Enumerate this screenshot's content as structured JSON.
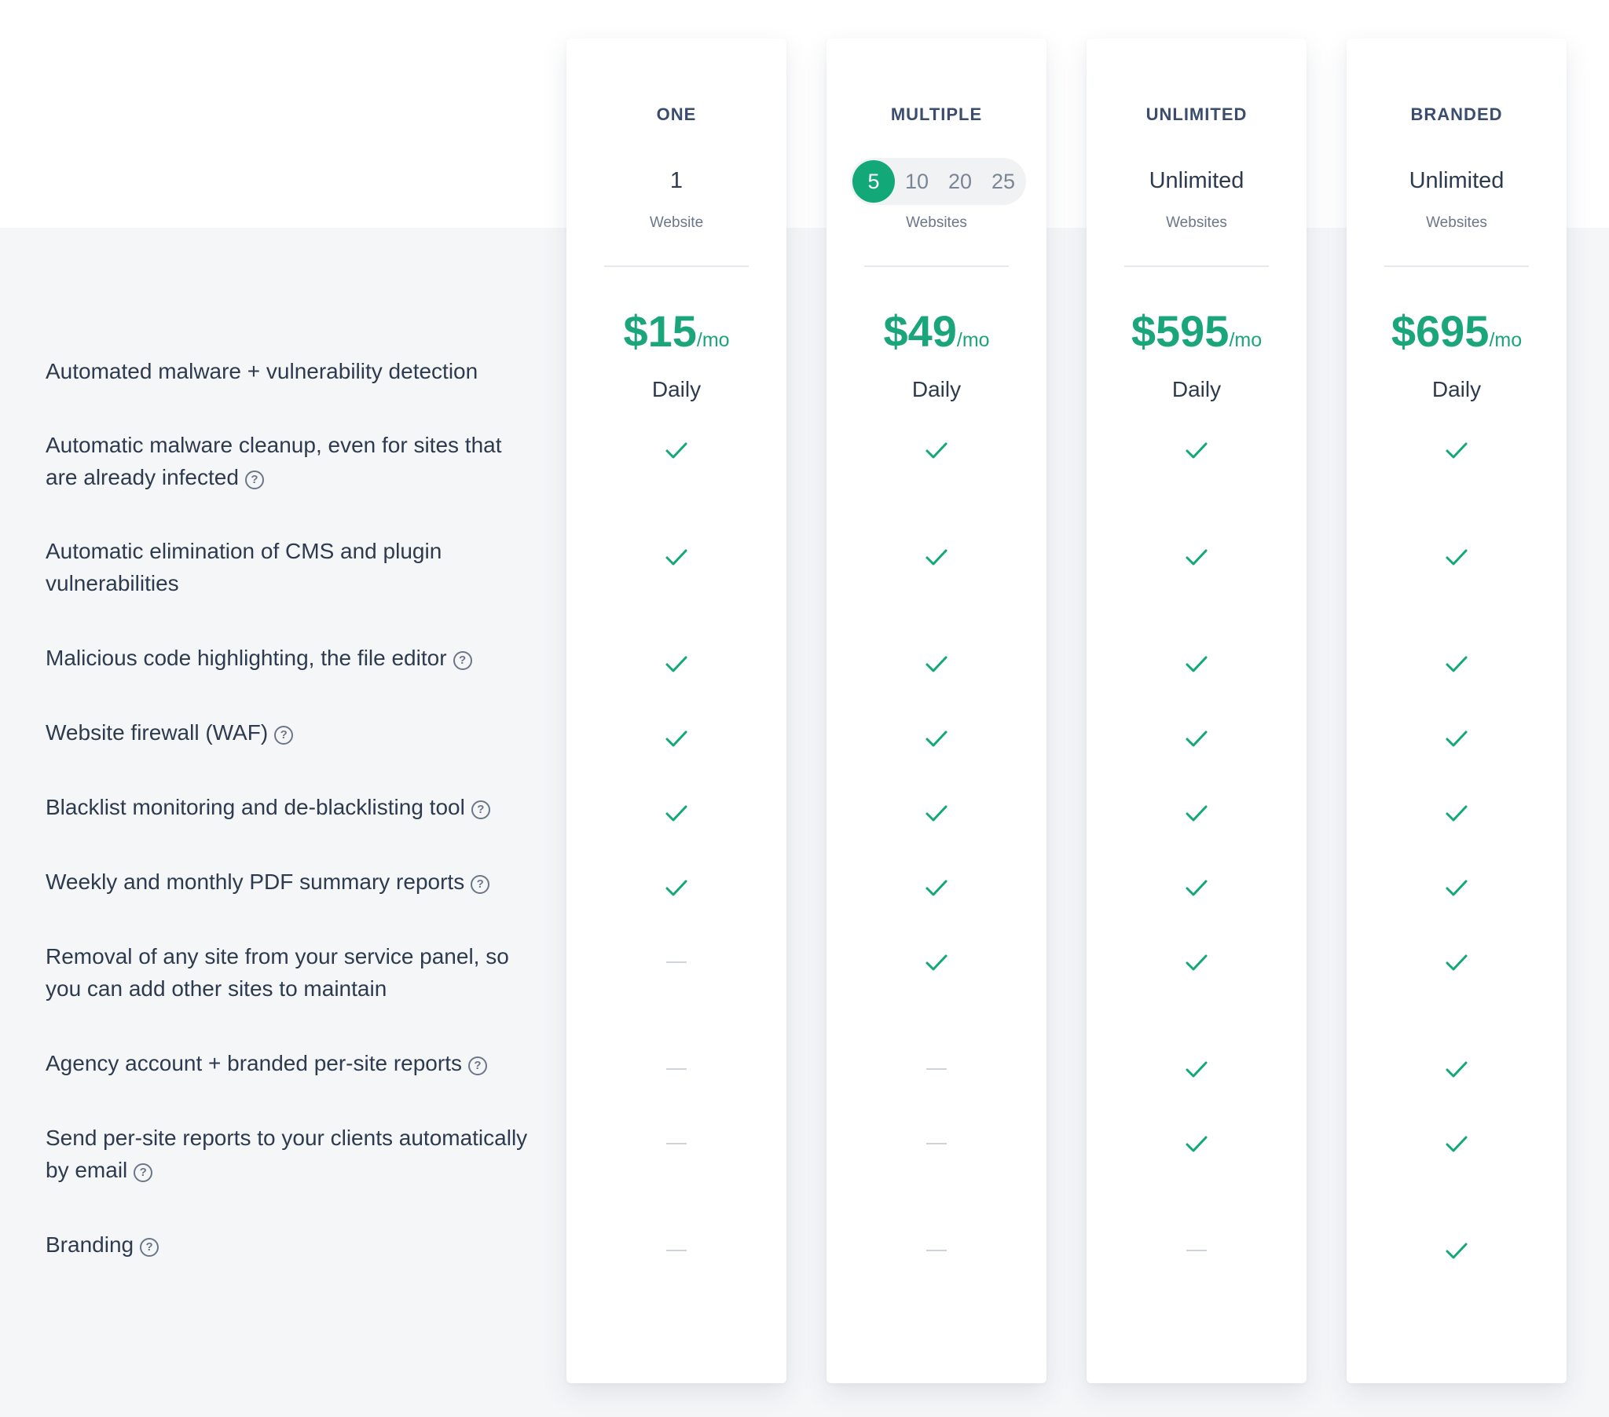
{
  "plans": [
    {
      "name": "ONE",
      "count": "1",
      "count_label": "Website",
      "price": "$15",
      "price_unit": "/mo",
      "detection": "Daily"
    },
    {
      "name": "MULTIPLE",
      "count_options": [
        "5",
        "10",
        "20",
        "25"
      ],
      "count_selected": "5",
      "count_label": "Websites",
      "price": "$49",
      "price_unit": "/mo",
      "detection": "Daily"
    },
    {
      "name": "UNLIMITED",
      "count": "Unlimited",
      "count_label": "Websites",
      "price": "$595",
      "price_unit": "/mo",
      "detection": "Daily"
    },
    {
      "name": "BRANDED",
      "count": "Unlimited",
      "count_label": "Websites",
      "price": "$695",
      "price_unit": "/mo",
      "detection": "Daily"
    }
  ],
  "features": [
    {
      "label": "Automated malware + vulnerability detection",
      "help": false
    },
    {
      "label": "Automatic malware cleanup, even for sites that are already infected",
      "help": true
    },
    {
      "label": "Automatic elimination of CMS and plugin vulnerabilities",
      "help": false
    },
    {
      "label": "Malicious code highlighting, the file editor",
      "help": true
    },
    {
      "label": "Website firewall (WAF)",
      "help": true
    },
    {
      "label": "Blacklist monitoring and de-blacklisting tool",
      "help": true
    },
    {
      "label": "Weekly and monthly PDF summary reports",
      "help": true
    },
    {
      "label": "Removal of any site from your service panel, so you can add other sites to maintain",
      "help": false
    },
    {
      "label": "Agency account + branded per-site reports",
      "help": true
    },
    {
      "label": "Send per-site reports to your clients automatically by email",
      "help": true
    },
    {
      "label": "Branding",
      "help": true
    }
  ],
  "availability": [
    [
      "check",
      "check",
      "check",
      "check"
    ],
    [
      "check",
      "check",
      "check",
      "check"
    ],
    [
      "check",
      "check",
      "check",
      "check"
    ],
    [
      "check",
      "check",
      "check",
      "check"
    ],
    [
      "check",
      "check",
      "check",
      "check"
    ],
    [
      "check",
      "check",
      "check",
      "check"
    ],
    [
      "none",
      "check",
      "check",
      "check"
    ],
    [
      "none",
      "none",
      "check",
      "check"
    ],
    [
      "none",
      "none",
      "check",
      "check"
    ],
    [
      "none",
      "none",
      "none",
      "check"
    ]
  ],
  "icons": {
    "check": "check-icon",
    "none": "dash-icon",
    "help": "question-circle-icon"
  },
  "colors": {
    "accent": "#12a878",
    "price": "#1aa57b",
    "text": "#2e3a4d",
    "muted": "#6b7688",
    "background": "#f5f6f8"
  }
}
